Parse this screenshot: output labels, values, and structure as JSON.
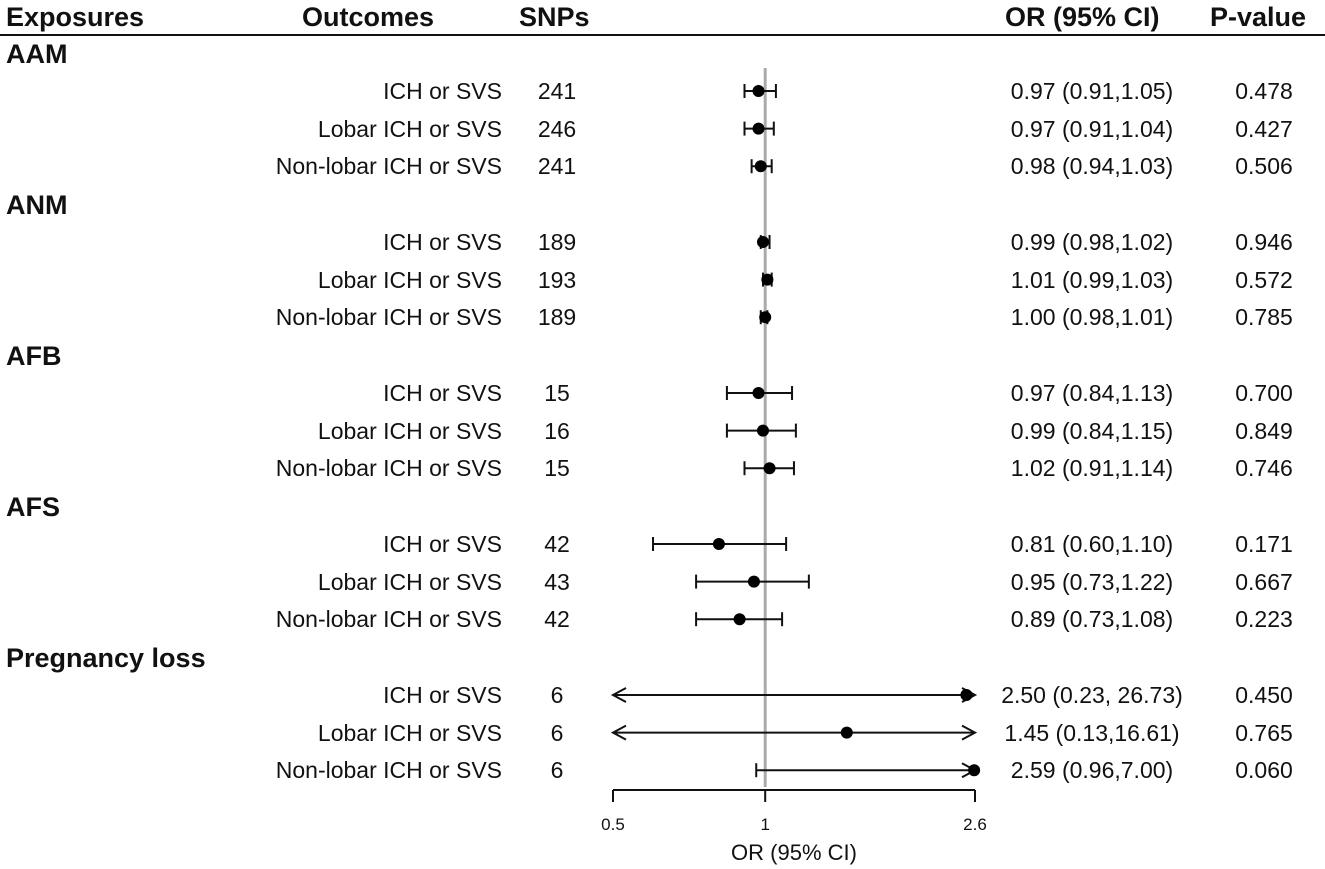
{
  "headers": {
    "exposures": "Exposures",
    "outcomes": "Outcomes",
    "snps": "SNPs",
    "or": "OR (95% CI)",
    "pvalue": "P-value"
  },
  "chart_data": {
    "type": "forest",
    "xlabel": "OR (95% CI)",
    "x_scale": "log",
    "xlim": [
      0.5,
      2.6
    ],
    "ticks": [
      {
        "value": 0.5,
        "label": "0.5"
      },
      {
        "value": 1,
        "label": "1"
      },
      {
        "value": 2.6,
        "label": "2.6"
      }
    ],
    "reference_line": 1,
    "groups": [
      {
        "name": "AAM",
        "rows": [
          {
            "outcome": "ICH or SVS",
            "snps": "241",
            "or": 0.97,
            "lo": 0.91,
            "hi": 1.05,
            "or_text": "0.97 (0.91,1.05)",
            "p": "0.478"
          },
          {
            "outcome": "Lobar ICH or SVS",
            "snps": "246",
            "or": 0.97,
            "lo": 0.91,
            "hi": 1.04,
            "or_text": "0.97 (0.91,1.04)",
            "p": "0.427"
          },
          {
            "outcome": "Non-lobar ICH or SVS",
            "snps": "241",
            "or": 0.98,
            "lo": 0.94,
            "hi": 1.03,
            "or_text": "0.98 (0.94,1.03)",
            "p": "0.506"
          }
        ]
      },
      {
        "name": "ANM",
        "rows": [
          {
            "outcome": "ICH or SVS",
            "snps": "189",
            "or": 0.99,
            "lo": 0.98,
            "hi": 1.02,
            "or_text": "0.99 (0.98,1.02)",
            "p": "0.946"
          },
          {
            "outcome": "Lobar ICH or SVS",
            "snps": "193",
            "or": 1.01,
            "lo": 0.99,
            "hi": 1.03,
            "or_text": "1.01 (0.99,1.03)",
            "p": "0.572"
          },
          {
            "outcome": "Non-lobar ICH or SVS",
            "snps": "189",
            "or": 1.0,
            "lo": 0.98,
            "hi": 1.01,
            "or_text": "1.00 (0.98,1.01)",
            "p": "0.785"
          }
        ]
      },
      {
        "name": "AFB",
        "rows": [
          {
            "outcome": "ICH or SVS",
            "snps": "15",
            "or": 0.97,
            "lo": 0.84,
            "hi": 1.13,
            "or_text": "0.97 (0.84,1.13)",
            "p": "0.700"
          },
          {
            "outcome": "Lobar ICH or SVS",
            "snps": "16",
            "or": 0.99,
            "lo": 0.84,
            "hi": 1.15,
            "or_text": "0.99 (0.84,1.15)",
            "p": "0.849"
          },
          {
            "outcome": "Non-lobar ICH or SVS",
            "snps": "15",
            "or": 1.02,
            "lo": 0.91,
            "hi": 1.14,
            "or_text": "1.02 (0.91,1.14)",
            "p": "0.746"
          }
        ]
      },
      {
        "name": "AFS",
        "rows": [
          {
            "outcome": "ICH or SVS",
            "snps": "42",
            "or": 0.81,
            "lo": 0.6,
            "hi": 1.1,
            "or_text": "0.81 (0.60,1.10)",
            "p": "0.171"
          },
          {
            "outcome": "Lobar ICH or SVS",
            "snps": "43",
            "or": 0.95,
            "lo": 0.73,
            "hi": 1.22,
            "or_text": "0.95 (0.73,1.22)",
            "p": "0.667"
          },
          {
            "outcome": "Non-lobar ICH or SVS",
            "snps": "42",
            "or": 0.89,
            "lo": 0.73,
            "hi": 1.08,
            "or_text": "0.89 (0.73,1.08)",
            "p": "0.223"
          }
        ]
      },
      {
        "name": "Pregnancy loss",
        "rows": [
          {
            "outcome": "ICH or SVS",
            "snps": "6",
            "or": 2.5,
            "lo": 0.23,
            "hi": 26.73,
            "or_text": "2.50 (0.23, 26.73)",
            "p": "0.450"
          },
          {
            "outcome": "Lobar ICH or SVS",
            "snps": "6",
            "or": 1.45,
            "lo": 0.13,
            "hi": 16.61,
            "or_text": "1.45 (0.13,16.61)",
            "p": "0.765"
          },
          {
            "outcome": "Non-lobar ICH or SVS",
            "snps": "6",
            "or": 2.59,
            "lo": 0.96,
            "hi": 7.0,
            "or_text": "2.59 (0.96,7.00)",
            "p": "0.060"
          }
        ]
      }
    ]
  }
}
